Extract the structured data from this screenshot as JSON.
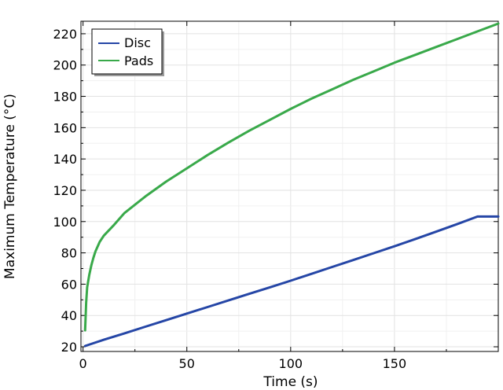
{
  "chart_data": {
    "type": "line",
    "xlabel": "Time (s)",
    "ylabel": "Maximum Temperature (°C)",
    "xlim": [
      -1,
      200
    ],
    "ylim": [
      17,
      228
    ],
    "xticks": [
      0,
      50,
      100,
      150
    ],
    "yticks": [
      20,
      40,
      60,
      80,
      100,
      120,
      140,
      160,
      180,
      200,
      220
    ],
    "grid": true,
    "legend": "top-left",
    "series": [
      {
        "name": "Disc",
        "color": "#2546a6",
        "x": [
          1,
          10,
          20,
          30,
          40,
          50,
          60,
          70,
          80,
          90,
          100,
          110,
          120,
          130,
          140,
          150,
          160,
          170,
          180,
          190,
          200
        ],
        "y": [
          20.5,
          24.5,
          28.6,
          32.8,
          37.0,
          41.2,
          45.4,
          49.6,
          53.8,
          58.0,
          62.2,
          66.6,
          71.0,
          75.4,
          79.8,
          84.2,
          88.8,
          93.5,
          98.3,
          103.2,
          103.2
        ]
      },
      {
        "name": "Pads",
        "color": "#39a94a",
        "x": [
          1,
          1.5,
          2,
          3,
          4,
          5,
          6,
          8,
          10,
          15,
          20,
          30,
          40,
          50,
          60,
          70,
          80,
          90,
          100,
          110,
          120,
          130,
          140,
          150,
          160,
          170,
          180,
          190,
          200
        ],
        "y": [
          30.5,
          48,
          58,
          66,
          72,
          77,
          81,
          87,
          91,
          98,
          105.5,
          116,
          125.5,
          134,
          142.5,
          150.5,
          158,
          165,
          172,
          178.5,
          184.5,
          190.5,
          196,
          201.5,
          206.5,
          211.5,
          216.5,
          221.5,
          226.5
        ]
      }
    ]
  }
}
